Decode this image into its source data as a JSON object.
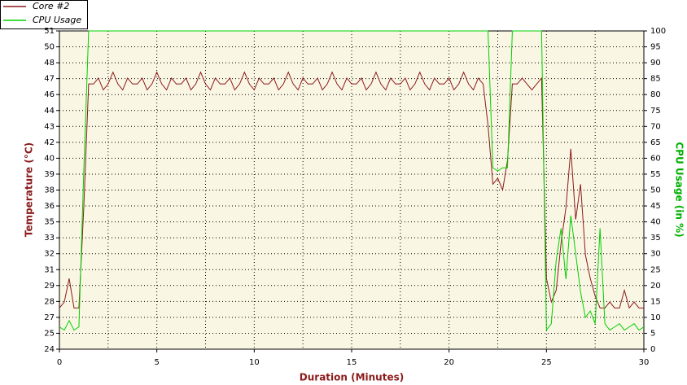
{
  "chart_data": {
    "type": "line",
    "xlabel": "Duration (Minutes)",
    "ylabel": "Temperature (°C)",
    "y2label": "CPU Usage (in %)",
    "xlim": [
      0,
      30
    ],
    "xticks": [
      0,
      5,
      10,
      15,
      20,
      25,
      30
    ],
    "xminorticks": [
      2.5,
      7.5,
      12.5,
      17.5,
      22.5,
      27.5
    ],
    "ylim": [
      24,
      51
    ],
    "yticks": [
      24,
      {
        "value": 25.35,
        "label": "25"
      },
      {
        "value": 26.7,
        "label": "27"
      },
      {
        "value": 28.05,
        "label": "28"
      },
      {
        "value": 29.4,
        "label": "29"
      },
      {
        "value": 30.75,
        "label": "31"
      },
      {
        "value": 32.1,
        "label": "32"
      },
      {
        "value": 33.45,
        "label": "33"
      },
      {
        "value": 34.8,
        "label": "35"
      },
      {
        "value": 36.15,
        "label": "36"
      },
      {
        "value": 37.5,
        "label": "38"
      },
      {
        "value": 38.85,
        "label": "39"
      },
      {
        "value": 40.2,
        "label": "40"
      },
      {
        "value": 41.55,
        "label": "42"
      },
      {
        "value": 42.9,
        "label": "43"
      },
      {
        "value": 44.25,
        "label": "44"
      },
      {
        "value": 45.6,
        "label": "46"
      },
      {
        "value": 46.95,
        "label": "47"
      },
      {
        "value": 48.3,
        "label": "48"
      },
      {
        "value": 49.65,
        "label": "50"
      },
      51
    ],
    "y2lim": [
      0,
      100
    ],
    "y2ticks": [
      0,
      5,
      10,
      15,
      20,
      25,
      30,
      35,
      40,
      45,
      50,
      55,
      60,
      65,
      70,
      75,
      80,
      85,
      90,
      95,
      100
    ],
    "grid": true,
    "x": [
      0,
      0.25,
      0.5,
      0.75,
      1,
      1.25,
      1.5,
      1.75,
      2,
      2.25,
      2.5,
      2.75,
      3,
      3.25,
      3.5,
      3.75,
      4,
      4.25,
      4.5,
      4.75,
      5,
      5.25,
      5.5,
      5.75,
      6,
      6.25,
      6.5,
      6.75,
      7,
      7.25,
      7.5,
      7.75,
      8,
      8.25,
      8.5,
      8.75,
      9,
      9.25,
      9.5,
      9.75,
      10,
      10.25,
      10.5,
      10.75,
      11,
      11.25,
      11.5,
      11.75,
      12,
      12.25,
      12.5,
      12.75,
      13,
      13.25,
      13.5,
      13.75,
      14,
      14.25,
      14.5,
      14.75,
      15,
      15.25,
      15.5,
      15.75,
      16,
      16.25,
      16.5,
      16.75,
      17,
      17.25,
      17.5,
      17.75,
      18,
      18.25,
      18.5,
      18.75,
      19,
      19.25,
      19.5,
      19.75,
      20,
      20.25,
      20.5,
      20.75,
      21,
      21.25,
      21.5,
      21.75,
      22,
      22.25,
      22.5,
      22.75,
      23,
      23.25,
      23.5,
      23.75,
      24,
      24.25,
      24.5,
      24.75,
      25,
      25.25,
      25.5,
      25.75,
      26,
      26.25,
      26.5,
      26.75,
      27,
      27.25,
      27.5,
      27.75,
      28,
      28.25,
      28.5,
      28.75,
      29,
      29.25,
      29.5,
      29.75,
      30
    ],
    "series": [
      {
        "name": "Core #2",
        "color": "#8b1a1a",
        "axis": "y",
        "values": [
          27.5,
          28,
          30,
          27.5,
          27.5,
          36,
          46.5,
          46.5,
          47,
          46,
          46.5,
          47.5,
          46.5,
          46,
          47,
          46.5,
          46.5,
          47,
          46,
          46.5,
          47.5,
          46.5,
          46,
          47,
          46.5,
          46.5,
          47,
          46,
          46.5,
          47.5,
          46.5,
          46,
          47,
          46.5,
          46.5,
          47,
          46,
          46.5,
          47.5,
          46.5,
          46,
          47,
          46.5,
          46.5,
          47,
          46,
          46.5,
          47.5,
          46.5,
          46,
          47,
          46.5,
          46.5,
          47,
          46,
          46.5,
          47.5,
          46.5,
          46,
          47,
          46.5,
          46.5,
          47,
          46,
          46.5,
          47.5,
          46.5,
          46,
          47,
          46.5,
          46.5,
          47,
          46,
          46.5,
          47.5,
          46.5,
          46,
          47,
          46.5,
          46.5,
          47,
          46,
          46.5,
          47.5,
          46.5,
          46,
          47,
          46.5,
          43,
          38,
          38.5,
          37.5,
          40,
          46.5,
          46.5,
          47,
          46.5,
          46,
          46.5,
          47,
          30,
          28,
          29,
          33,
          36,
          41,
          35,
          38,
          32,
          30,
          28.5,
          27.5,
          27.5,
          28,
          27.5,
          27.5,
          29,
          27.5,
          28,
          27.5,
          27.5
        ]
      },
      {
        "name": "CPU Usage",
        "color": "#00d000",
        "axis": "y2",
        "values": [
          7,
          6,
          9,
          6,
          7,
          56,
          100,
          100,
          100,
          100,
          100,
          100,
          100,
          100,
          100,
          100,
          100,
          100,
          100,
          100,
          100,
          100,
          100,
          100,
          100,
          100,
          100,
          100,
          100,
          100,
          100,
          100,
          100,
          100,
          100,
          100,
          100,
          100,
          100,
          100,
          100,
          100,
          100,
          100,
          100,
          100,
          100,
          100,
          100,
          100,
          100,
          100,
          100,
          100,
          100,
          100,
          100,
          100,
          100,
          100,
          100,
          100,
          100,
          100,
          100,
          100,
          100,
          100,
          100,
          100,
          100,
          100,
          100,
          100,
          100,
          100,
          100,
          100,
          100,
          100,
          100,
          100,
          100,
          100,
          100,
          100,
          100,
          100,
          100,
          57,
          56,
          57,
          57,
          100,
          100,
          100,
          100,
          100,
          100,
          100,
          6,
          8,
          28,
          38,
          22,
          42,
          30,
          18,
          10,
          12,
          8,
          38,
          8,
          6,
          7,
          8,
          6,
          7,
          8,
          6,
          7
        ]
      }
    ]
  }
}
